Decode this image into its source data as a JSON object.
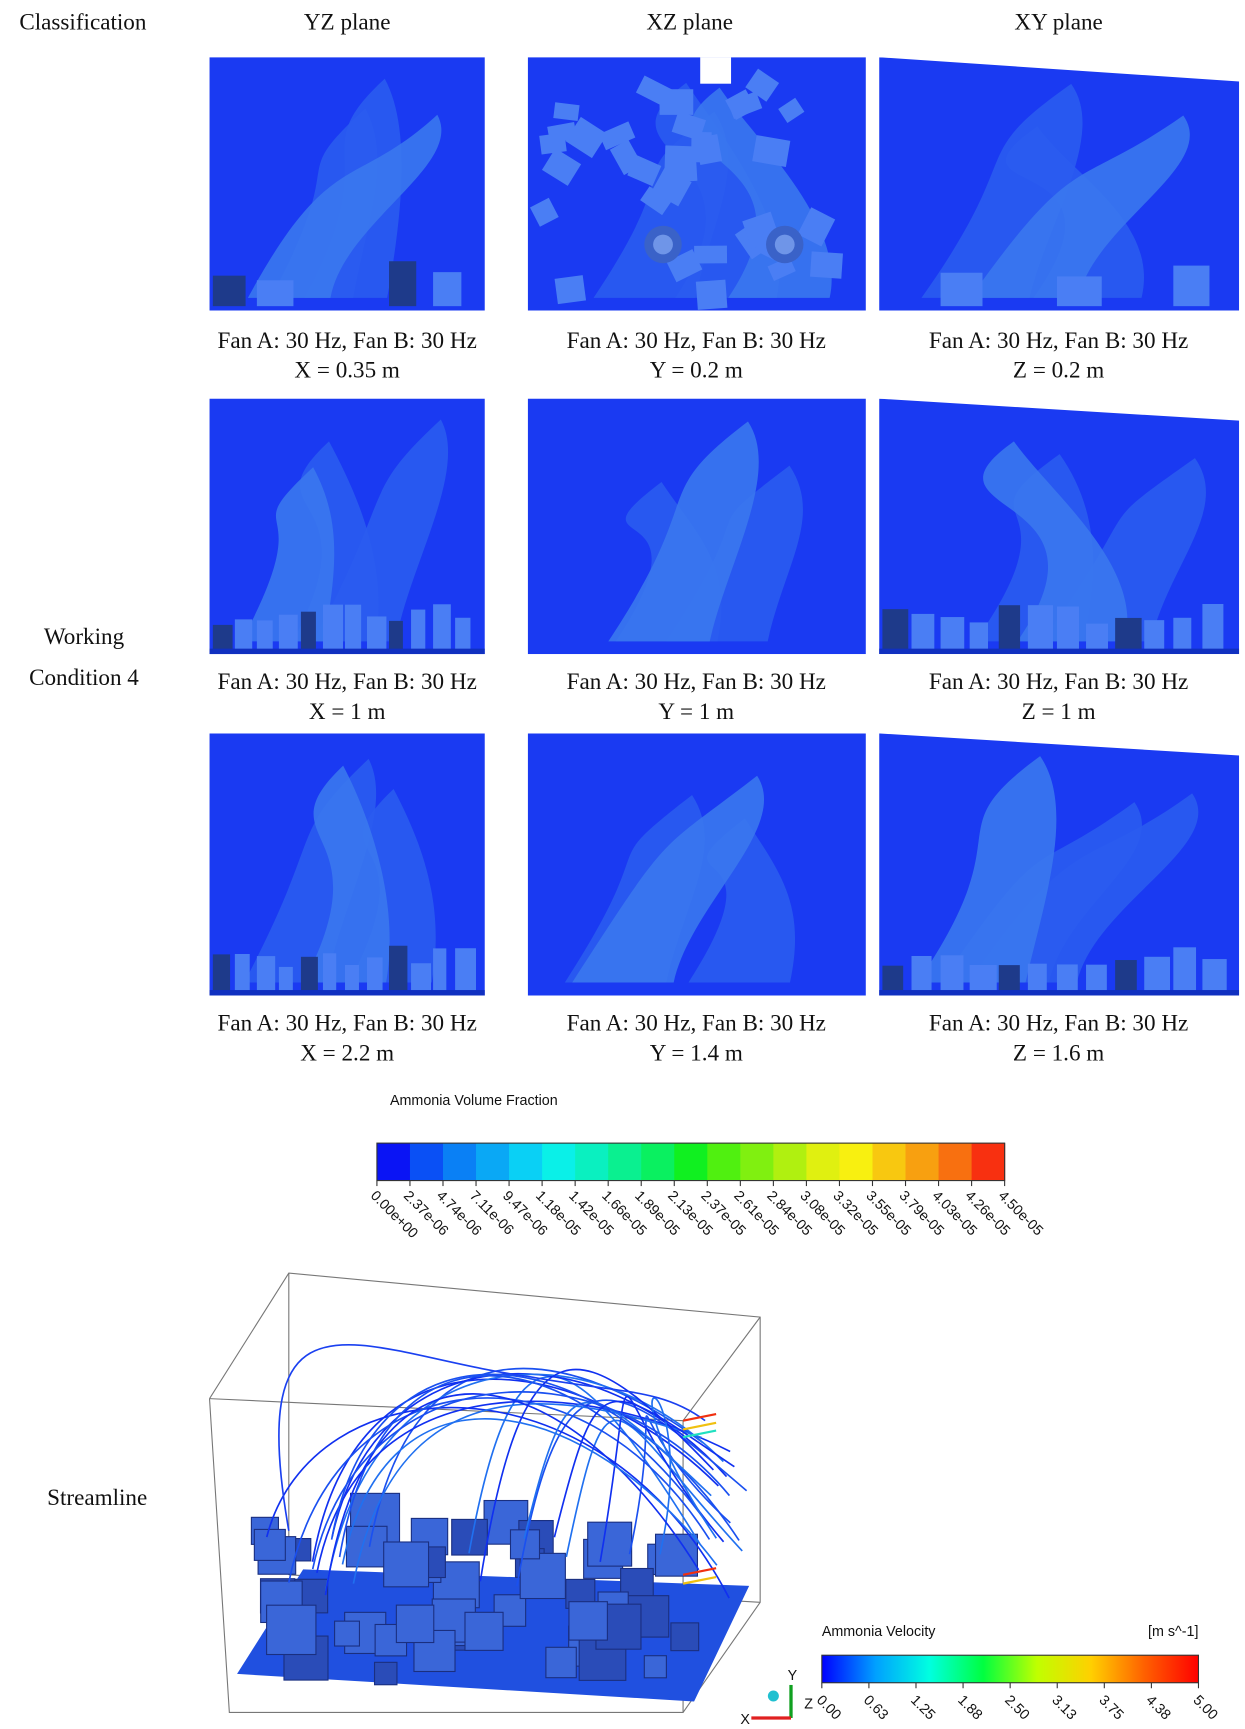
{
  "header": {
    "classification": "Classification",
    "planes": [
      "YZ plane",
      "XZ plane",
      "XY plane"
    ]
  },
  "row_label": [
    "Working",
    "Condition 4"
  ],
  "panels": [
    [
      {
        "line1": "Fan A: 30 Hz, Fan B: 30 Hz",
        "line2": "X = 0.35 m"
      },
      {
        "line1": "Fan A: 30 Hz, Fan B: 30 Hz",
        "line2": "Y = 0.2 m"
      },
      {
        "line1": "Fan A: 30 Hz, Fan B: 30 Hz",
        "line2": "Z = 0.2 m"
      }
    ],
    [
      {
        "line1": "Fan A: 30 Hz, Fan B: 30 Hz",
        "line2": "X = 1 m"
      },
      {
        "line1": "Fan A: 30 Hz, Fan B: 30 Hz",
        "line2": "Y = 1 m"
      },
      {
        "line1": "Fan A: 30 Hz, Fan B: 30 Hz",
        "line2": "Z = 1 m"
      }
    ],
    [
      {
        "line1": "Fan A: 30 Hz, Fan B: 30 Hz",
        "line2": "X = 2.2 m"
      },
      {
        "line1": "Fan A: 30 Hz, Fan B: 30 Hz",
        "line2": "Y = 1.4 m"
      },
      {
        "line1": "Fan A: 30 Hz, Fan B: 30 Hz",
        "line2": "Z = 1.6 m"
      }
    ]
  ],
  "fraction_legend": {
    "title": "Ammonia Volume Fraction",
    "labels": [
      "0.00e+00",
      "2.37e-06",
      "4.74e-06",
      "7.11e-06",
      "9.47e-06",
      "1.18e-05",
      "1.42e-05",
      "1.66e-05",
      "1.89e-05",
      "2.13e-05",
      "2.37e-05",
      "2.61e-05",
      "2.84e-05",
      "3.08e-05",
      "3.32e-05",
      "3.55e-05",
      "3.79e-05",
      "4.03e-05",
      "4.26e-05",
      "4.50e-05"
    ],
    "colors": [
      "#0a14f5",
      "#0a50f5",
      "#0a80f5",
      "#0aa8f5",
      "#0ad0f5",
      "#0af0e8",
      "#0af0c0",
      "#0af090",
      "#0af060",
      "#10f020",
      "#50f010",
      "#80f010",
      "#b0f010",
      "#e0f010",
      "#f8f010",
      "#f8c810",
      "#f8a010",
      "#f87010",
      "#f83010"
    ]
  },
  "streamline_label": "Streamline",
  "velocity_legend": {
    "title": "Ammonia Velocity",
    "unit": "[m s^-1]",
    "labels": [
      "0.00",
      "0.63",
      "1.25",
      "1.88",
      "2.50",
      "3.13",
      "3.75",
      "4.38",
      "5.00"
    ],
    "colors": [
      "#0000ff",
      "#00a0ff",
      "#00ffe0",
      "#00ff40",
      "#c0ff00",
      "#ffd000",
      "#ff6000",
      "#ff0000"
    ]
  },
  "axes_triad": [
    "Y",
    "Z",
    "X"
  ]
}
